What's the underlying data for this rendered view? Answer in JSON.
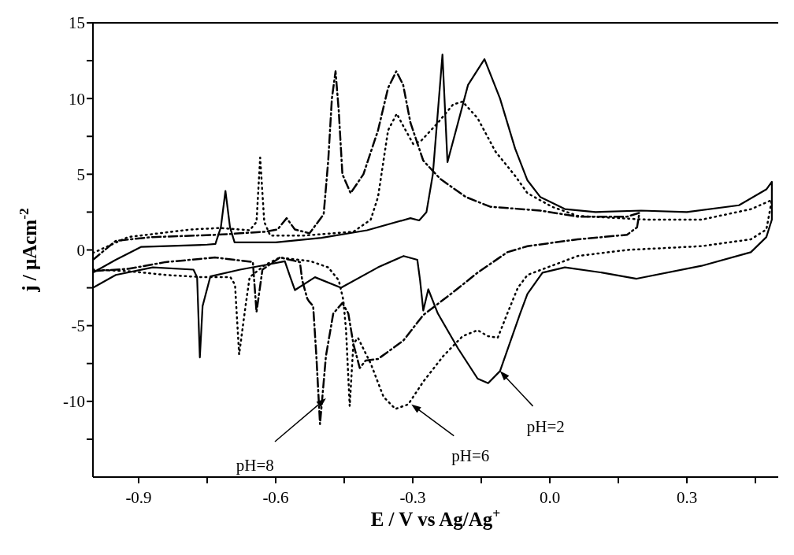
{
  "chart_data": {
    "type": "line",
    "xlabel": "E / V  vs Ag/Ag$^{+}$",
    "ylabel": "j / μAcm$^{-2}$",
    "xlim": [
      -1.0,
      0.5
    ],
    "xticks": [
      -0.9,
      {
        "value": -0.75,
        "label": null
      },
      -0.6,
      {
        "value": -0.45,
        "label": null
      },
      -0.3,
      {
        "value": -0.15,
        "label": null
      },
      {
        "value": 0,
        "label": "0.0"
      },
      {
        "value": 0.15,
        "label": null
      },
      0.3,
      {
        "value": 0.45,
        "label": null
      }
    ],
    "ylim": [
      -15,
      15
    ],
    "yticks": [
      {
        "value": -12.5,
        "label": null
      },
      -10,
      {
        "value": -7.5,
        "label": null
      },
      -5,
      {
        "value": -2.5,
        "label": null
      },
      0,
      {
        "value": 2.5,
        "label": null
      },
      5,
      {
        "value": 7.5,
        "label": null
      },
      10,
      {
        "value": 12.5,
        "label": null
      },
      15
    ],
    "grid": false,
    "legend": false,
    "marker": "none",
    "series": [
      {
        "color": "#000000",
        "line_style": "solid",
        "x": [
          -1.0,
          -0.95,
          -0.895,
          -0.84,
          -0.75,
          -0.732,
          -0.72,
          -0.71,
          -0.7,
          -0.69,
          -0.6,
          -0.5,
          -0.4,
          -0.305,
          -0.286,
          -0.27,
          -0.256,
          -0.235,
          -0.224,
          -0.201,
          -0.179,
          -0.143,
          -0.109,
          -0.076,
          -0.049,
          -0.021,
          0.033,
          0.1,
          0.2,
          0.3,
          0.414,
          0.474,
          0.486,
          0.486,
          0.474,
          0.44,
          0.332,
          0.19,
          0.115,
          0.033,
          -0.016,
          -0.049,
          -0.065,
          -0.109,
          -0.135,
          -0.158,
          -0.201,
          -0.245,
          -0.266,
          -0.277,
          -0.284,
          -0.29,
          -0.32,
          -0.376,
          -0.457,
          -0.514,
          -0.558,
          -0.568,
          -0.58,
          -0.624,
          -0.678,
          -0.743,
          -0.76,
          -0.766,
          -0.772,
          -0.78,
          -0.869,
          -0.95,
          -1.0
        ],
        "values": [
          -1.5,
          -0.65,
          0.2,
          0.25,
          0.35,
          0.4,
          1.5,
          3.9,
          1.5,
          0.5,
          0.5,
          0.8,
          1.3,
          2.1,
          1.95,
          2.5,
          5.0,
          12.9,
          5.8,
          8.4,
          10.9,
          12.6,
          10.0,
          6.7,
          4.6,
          3.5,
          2.7,
          2.5,
          2.6,
          2.5,
          2.95,
          4.0,
          4.5,
          2.0,
          0.85,
          -0.15,
          -1.05,
          -1.9,
          -1.5,
          -1.15,
          -1.5,
          -2.9,
          -4.2,
          -8.0,
          -8.8,
          -8.5,
          -6.5,
          -4.2,
          -2.6,
          -4.0,
          -2.0,
          -0.65,
          -0.4,
          -1.15,
          -2.5,
          -1.8,
          -2.65,
          -1.8,
          -0.75,
          -1.0,
          -1.3,
          -1.75,
          -3.7,
          -7.1,
          -1.8,
          -1.3,
          -1.15,
          -1.65,
          -2.5
        ]
      },
      {
        "color": "#000000",
        "line_style": "dotted",
        "x": [
          -1.0,
          -0.923,
          -0.787,
          -0.722,
          -0.657,
          -0.642,
          -0.634,
          -0.625,
          -0.612,
          -0.539,
          -0.43,
          -0.392,
          -0.376,
          -0.354,
          -0.335,
          -0.321,
          -0.299,
          -0.282,
          -0.245,
          -0.212,
          -0.191,
          -0.158,
          -0.119,
          -0.076,
          -0.049,
          0.005,
          0.061,
          0.213,
          0.332,
          0.441,
          0.486,
          0.474,
          0.44,
          0.332,
          0.169,
          0.061,
          -0.027,
          -0.049,
          -0.07,
          -0.093,
          -0.114,
          -0.135,
          -0.158,
          -0.191,
          -0.233,
          -0.277,
          -0.31,
          -0.338,
          -0.364,
          -0.392,
          -0.42,
          -0.43,
          -0.438,
          -0.446,
          -0.452,
          -0.462,
          -0.485,
          -0.523,
          -0.591,
          -0.624,
          -0.657,
          -0.666,
          -0.68,
          -0.689,
          -0.699,
          -0.76,
          -0.841,
          -0.923,
          -1.0
        ],
        "values": [
          -0.2,
          0.85,
          1.35,
          1.45,
          1.3,
          1.85,
          6.1,
          1.85,
          0.95,
          0.95,
          1.2,
          2.0,
          3.5,
          7.9,
          9.0,
          8.2,
          7.0,
          7.2,
          8.4,
          9.6,
          9.8,
          8.7,
          6.5,
          4.9,
          3.75,
          2.85,
          2.25,
          2.0,
          2.0,
          2.7,
          3.3,
          1.35,
          0.7,
          0.25,
          0.0,
          -0.4,
          -1.4,
          -1.65,
          -2.5,
          -4.2,
          -5.8,
          -5.7,
          -5.3,
          -5.7,
          -7.0,
          -8.7,
          -10.2,
          -10.5,
          -9.7,
          -7.5,
          -5.8,
          -6.2,
          -10.3,
          -5.3,
          -3.3,
          -2.0,
          -1.15,
          -0.75,
          -0.5,
          -1.0,
          -1.8,
          -3.7,
          -6.9,
          -2.3,
          -1.8,
          -1.8,
          -1.65,
          -1.4,
          -1.3
        ]
      },
      {
        "color": "#000000",
        "line_style": "dashed",
        "x": [
          -1.0,
          -0.95,
          -0.87,
          -0.73,
          -0.624,
          -0.596,
          -0.576,
          -0.558,
          -0.526,
          -0.495,
          -0.485,
          -0.477,
          -0.469,
          -0.462,
          -0.454,
          -0.436,
          -0.408,
          -0.376,
          -0.354,
          -0.336,
          -0.321,
          -0.305,
          -0.277,
          -0.24,
          -0.184,
          -0.13,
          -0.021,
          0.061,
          0.169,
          0.196,
          0.191,
          0.169,
          0.061,
          -0.049,
          -0.093,
          -0.158,
          -0.212,
          -0.277,
          -0.321,
          -0.376,
          -0.403,
          -0.416,
          -0.43,
          -0.441,
          -0.454,
          -0.474,
          -0.49,
          -0.503,
          -0.511,
          -0.518,
          -0.527,
          -0.531,
          -0.542,
          -0.547,
          -0.591,
          -0.629,
          -0.642,
          -0.65,
          -0.732,
          -0.841,
          -0.923,
          -1.0
        ],
        "values": [
          -0.65,
          0.6,
          0.85,
          1.0,
          1.2,
          1.35,
          2.1,
          1.35,
          1.1,
          2.35,
          5.9,
          10.0,
          11.8,
          9.2,
          5.0,
          3.75,
          5.0,
          7.9,
          10.7,
          11.8,
          10.9,
          8.4,
          5.9,
          4.7,
          3.5,
          2.85,
          2.6,
          2.2,
          2.2,
          2.45,
          1.5,
          1.0,
          0.7,
          0.25,
          -0.15,
          -1.5,
          -2.8,
          -4.3,
          -6.0,
          -7.2,
          -7.3,
          -7.8,
          -6.2,
          -4.2,
          -3.5,
          -4.2,
          -7.0,
          -11.5,
          -7.0,
          -3.7,
          -3.4,
          -3.2,
          -2.0,
          -0.8,
          -0.5,
          -1.3,
          -4.1,
          -0.8,
          -0.5,
          -0.8,
          -1.25,
          -1.4
        ]
      }
    ],
    "annotations": [
      {
        "text": "pH=8",
        "x": -0.49,
        "y": -9.8
      },
      {
        "text": "pH=6",
        "x": -0.303,
        "y": -10.2
      },
      {
        "text": "pH=2",
        "x": -0.109,
        "y": -8.0
      }
    ]
  }
}
